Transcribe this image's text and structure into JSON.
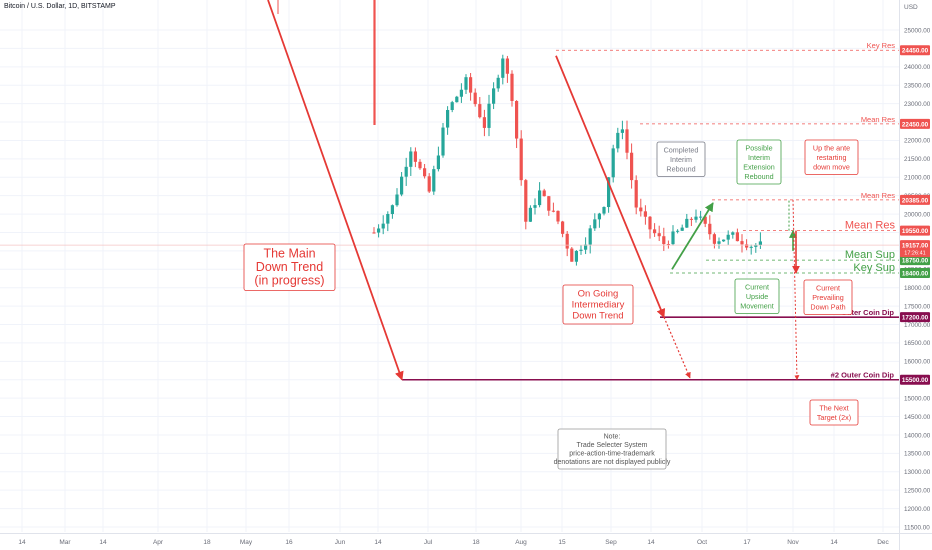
{
  "header": {
    "symbol": "Bitcoin / U.S. Dollar, 1D, BITSTAMP",
    "currency": "USD"
  },
  "colors": {
    "bull": "#26a69a",
    "bear": "#ef5350",
    "red": "#e53935",
    "green": "#43a047",
    "maroon": "#880e4f",
    "gray": "#787b86"
  },
  "chart_data": {
    "type": "candlestick",
    "y_axis": {
      "range": [
        11500,
        25500
      ],
      "ticks": [
        11500,
        12000,
        12500,
        13000,
        13500,
        14000,
        14500,
        15000,
        15500,
        16000,
        16500,
        17000,
        17500,
        18000,
        18500,
        19000,
        19500,
        20000,
        20500,
        21000,
        21500,
        22000,
        22500,
        23000,
        23500,
        24000,
        24500,
        25000
      ]
    },
    "x_axis": {
      "labels": [
        "14",
        "Mar",
        "14",
        "Apr",
        "18",
        "May",
        "16",
        "Jun",
        "14",
        "Jul",
        "18",
        "Aug",
        "15",
        "Sep",
        "14",
        "Oct",
        "17",
        "Nov",
        "14",
        "Dec"
      ]
    },
    "price_path": [
      [
        0,
        19500
      ],
      [
        4,
        20200
      ],
      [
        8,
        21800
      ],
      [
        12,
        20600
      ],
      [
        16,
        22800
      ],
      [
        20,
        23600
      ],
      [
        24,
        22400
      ],
      [
        28,
        24300
      ],
      [
        30,
        23200
      ],
      [
        33,
        19800
      ],
      [
        36,
        20600
      ],
      [
        40,
        19800
      ],
      [
        43,
        18800
      ],
      [
        46,
        19300
      ],
      [
        50,
        20300
      ],
      [
        52,
        21800
      ],
      [
        54,
        22400
      ],
      [
        57,
        20200
      ],
      [
        60,
        19600
      ],
      [
        63,
        19200
      ],
      [
        66,
        19500
      ],
      [
        70,
        20000
      ],
      [
        74,
        19300
      ],
      [
        78,
        19400
      ],
      [
        82,
        19150
      ],
      [
        84,
        19157
      ]
    ],
    "price_levels": [
      {
        "value": 24450,
        "label": "Key Res",
        "badge": "24450.00",
        "style": "dashed",
        "color": "#ef5350"
      },
      {
        "value": 22450,
        "label": "Mean Res",
        "badge": "22450.00",
        "style": "dashed",
        "color": "#ef5350"
      },
      {
        "value": 20385,
        "label": "Mean Res",
        "badge": "20385.00",
        "style": "dashed",
        "color": "#ef5350"
      },
      {
        "value": 19550,
        "label": "Mean Res",
        "badge": "19550.00",
        "style": "dashed",
        "color": "#ef5350"
      },
      {
        "value": 18750,
        "label": "Mean Sup",
        "badge": "18750.00",
        "style": "dashed",
        "color": "#43a047"
      },
      {
        "value": 18400,
        "label": "Key Sup",
        "badge": "18400.00",
        "style": "dashed",
        "color": "#43a047"
      },
      {
        "value": 17200,
        "label": "Outer Coin Dip",
        "badge": "17200.00",
        "style": "solid",
        "color": "#880e4f"
      },
      {
        "value": 15500,
        "label": "#2 Outer Coin Dip",
        "badge": "15500.00",
        "style": "solid",
        "color": "#880e4f"
      }
    ],
    "current_price": {
      "value": 19157,
      "badge": "19157.00",
      "countdown": "17:26:41"
    },
    "annotations": {
      "main_trend": [
        "The Main",
        "Down Trend",
        "(in progress)"
      ],
      "intermediary": [
        "On Going",
        "Intermediary",
        "Down Trend"
      ],
      "completed": [
        "Completed",
        "Interim",
        "Rebound"
      ],
      "possible": [
        "Possible",
        "Interim",
        "Extension",
        "Rebound"
      ],
      "upante": [
        "Up the ante",
        "restarting",
        "down move"
      ],
      "upside": [
        "Current",
        "Upside",
        "Movement"
      ],
      "prevailing": [
        "Current",
        "Prevailing",
        "Down Path"
      ],
      "target": [
        "The Next",
        "Target (2x)"
      ],
      "note": [
        "Note:",
        "Trade Selecter System",
        "price-action-time-trademark",
        "denotations are not displayed publicly"
      ]
    }
  }
}
